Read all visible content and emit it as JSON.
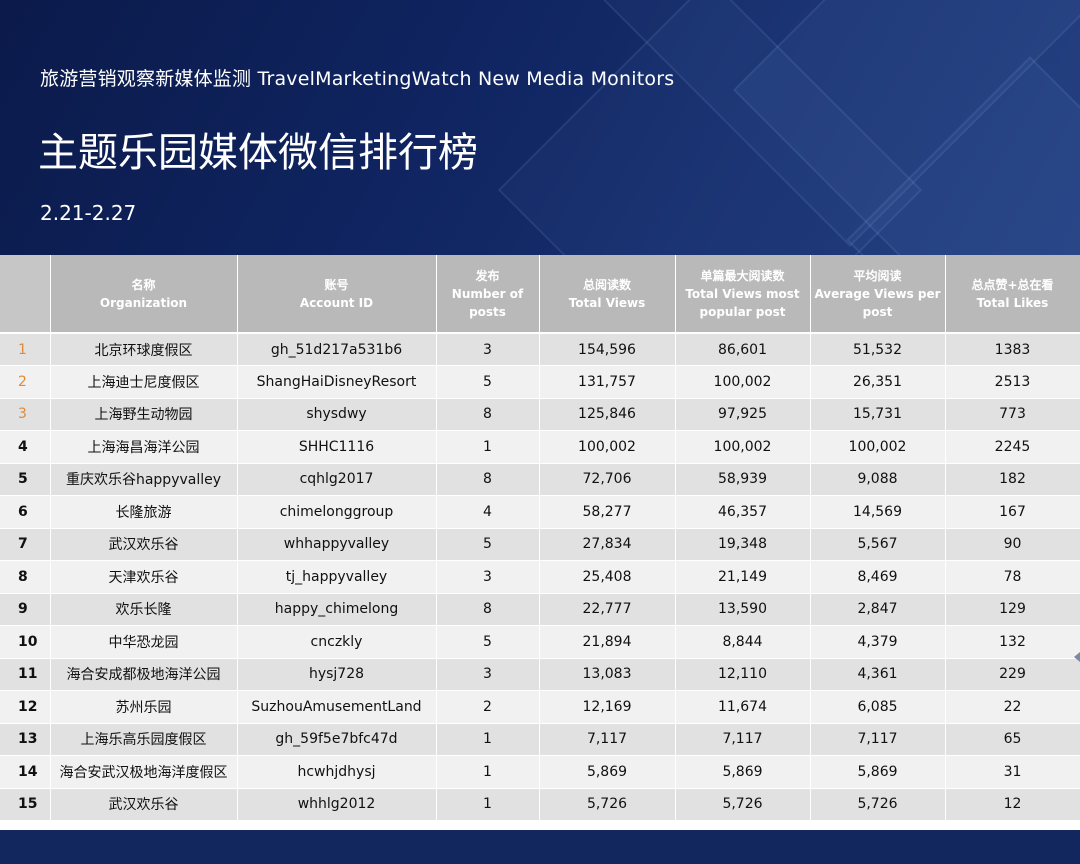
{
  "header": {
    "subtitle": "旅游营销观察新媒体监测 TravelMarketingWatch New Media Monitors",
    "title": "主题乐园媒体微信排行榜",
    "date_range": "2.21-2.27"
  },
  "table": {
    "columns": [
      {
        "cn": "",
        "en": ""
      },
      {
        "cn": "名称",
        "en": "Organization"
      },
      {
        "cn": "账号",
        "en": "Account ID"
      },
      {
        "cn": "发布",
        "en": "Number of posts"
      },
      {
        "cn": "总阅读数",
        "en": "Total Views"
      },
      {
        "cn": "单篇最大阅读数",
        "en": "Total Views most popular post"
      },
      {
        "cn": "平均阅读",
        "en": "Average Views per post"
      },
      {
        "cn": "总点赞+总在看",
        "en": "Total Likes"
      }
    ],
    "rows": [
      {
        "rank": "1",
        "org": "北京环球度假区",
        "account": "gh_51d217a531b6",
        "posts": "3",
        "total_views": "154,596",
        "max_views": "86,601",
        "avg_views": "51,532",
        "likes": "1383"
      },
      {
        "rank": "2",
        "org": "上海迪士尼度假区",
        "account": "ShangHaiDisneyResort",
        "posts": "5",
        "total_views": "131,757",
        "max_views": "100,002",
        "avg_views": "26,351",
        "likes": "2513"
      },
      {
        "rank": "3",
        "org": "上海野生动物园",
        "account": "shysdwy",
        "posts": "8",
        "total_views": "125,846",
        "max_views": "97,925",
        "avg_views": "15,731",
        "likes": "773"
      },
      {
        "rank": "4",
        "org": "上海海昌海洋公园",
        "account": "SHHC1116",
        "posts": "1",
        "total_views": "100,002",
        "max_views": "100,002",
        "avg_views": "100,002",
        "likes": "2245"
      },
      {
        "rank": "5",
        "org": "重庆欢乐谷happyvalley",
        "account": "cqhlg2017",
        "posts": "8",
        "total_views": "72,706",
        "max_views": "58,939",
        "avg_views": "9,088",
        "likes": "182"
      },
      {
        "rank": "6",
        "org": "长隆旅游",
        "account": "chimelonggroup",
        "posts": "4",
        "total_views": "58,277",
        "max_views": "46,357",
        "avg_views": "14,569",
        "likes": "167"
      },
      {
        "rank": "7",
        "org": "武汉欢乐谷",
        "account": "whhappyvalley",
        "posts": "5",
        "total_views": "27,834",
        "max_views": "19,348",
        "avg_views": "5,567",
        "likes": "90"
      },
      {
        "rank": "8",
        "org": "天津欢乐谷",
        "account": "tj_happyvalley",
        "posts": "3",
        "total_views": "25,408",
        "max_views": "21,149",
        "avg_views": "8,469",
        "likes": "78"
      },
      {
        "rank": "9",
        "org": "欢乐长隆",
        "account": "happy_chimelong",
        "posts": "8",
        "total_views": "22,777",
        "max_views": "13,590",
        "avg_views": "2,847",
        "likes": "129"
      },
      {
        "rank": "10",
        "org": "中华恐龙园",
        "account": "cnczkly",
        "posts": "5",
        "total_views": "21,894",
        "max_views": "8,844",
        "avg_views": "4,379",
        "likes": "132"
      },
      {
        "rank": "11",
        "org": "海合安成都极地海洋公园",
        "account": "hysj728",
        "posts": "3",
        "total_views": "13,083",
        "max_views": "12,110",
        "avg_views": "4,361",
        "likes": "229"
      },
      {
        "rank": "12",
        "org": "苏州乐园",
        "account": "SuzhouAmusementLand",
        "posts": "2",
        "total_views": "12,169",
        "max_views": "11,674",
        "avg_views": "6,085",
        "likes": "22"
      },
      {
        "rank": "13",
        "org": "上海乐高乐园度假区",
        "account": "gh_59f5e7bfc47d",
        "posts": "1",
        "total_views": "7,117",
        "max_views": "7,117",
        "avg_views": "7,117",
        "likes": "65"
      },
      {
        "rank": "14",
        "org": "海合安武汉极地海洋度假区",
        "account": "hcwhjdhysj",
        "posts": "1",
        "total_views": "5,869",
        "max_views": "5,869",
        "avg_views": "5,869",
        "likes": "31"
      },
      {
        "rank": "15",
        "org": "武汉欢乐谷",
        "account": "whhlg2012",
        "posts": "1",
        "total_views": "5,726",
        "max_views": "5,726",
        "avg_views": "5,726",
        "likes": "12"
      }
    ]
  },
  "colors": {
    "banner": "#0f2460",
    "header_row": "#b9b9b9",
    "row_odd": "#e1e1e1",
    "row_even": "#f1f1f1",
    "top_rank": "#e08a3c",
    "footer": "#13275f"
  }
}
